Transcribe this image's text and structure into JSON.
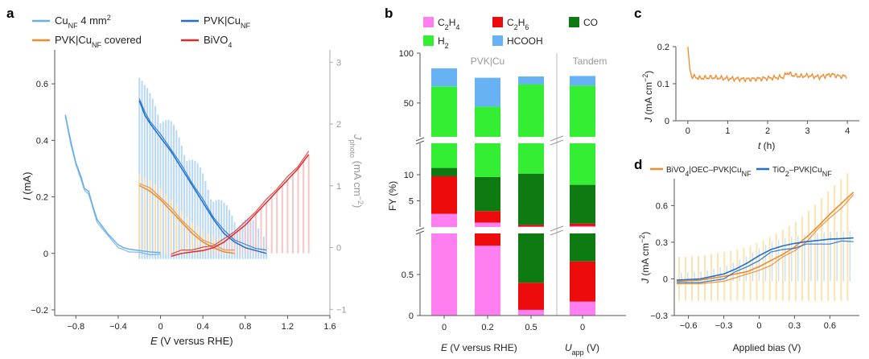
{
  "panels": {
    "a": {
      "label": "a",
      "xlabel_var": "E",
      "xlabel_rest": " (V versus RHE)",
      "ylabel_var": "I",
      "ylabel_rest": " (mA)",
      "y2label_var": "J",
      "y2label_sub": "photo",
      "y2label_rest": " (mA cm",
      "y2label_sup": "−2",
      "y2label_end": ")",
      "xticks": [
        "-0.8",
        "-0.4",
        "0",
        "0.4",
        "0.8",
        "1.2",
        "1.6"
      ],
      "yticks": [
        "-0.2",
        "0",
        "0.2",
        "0.4",
        "0.6"
      ],
      "y2ticks": [
        "-1",
        "0",
        "1",
        "2",
        "3"
      ],
      "legend": [
        {
          "main": "Cu",
          "sub": "NF",
          "rest": " 4 mm",
          "sup": "2",
          "tail": "",
          "color": "#6aaee8"
        },
        {
          "main": "PVK|Cu",
          "sub": "NF",
          "rest": "",
          "sup": "",
          "tail": "",
          "color": "#1f6fce"
        },
        {
          "main": "PVK|Cu",
          "sub": "NF",
          "rest": " covered",
          "sup": "",
          "tail": "",
          "color": "#f08a2a"
        },
        {
          "main": "BiVO",
          "sub": "4",
          "rest": "",
          "sup": "",
          "tail": "",
          "color": "#e02a2a"
        }
      ]
    },
    "b": {
      "label": "b",
      "ylabel": "FY (%)",
      "xlabel_var": "E",
      "xlabel_rest": " (V versus RHE)",
      "xlabel2_var": "U",
      "xlabel2_sub": "app",
      "xlabel2_rest": " (V)",
      "group1": "PVK|Cu",
      "group2": "Tandem",
      "xticks": [
        "0",
        "0.2",
        "0.5",
        "0"
      ],
      "yticks_top": [
        "50",
        "100"
      ],
      "yticks_mid": [
        "5",
        "10"
      ],
      "yticks_bot": [
        "0",
        "0.5"
      ],
      "legend": [
        {
          "main": "C",
          "sub": "2",
          "mid": "H",
          "sub2": "4",
          "color": "#ff7ef0"
        },
        {
          "main": "C",
          "sub": "2",
          "mid": "H",
          "sub2": "6",
          "color": "#ee0b0b"
        },
        {
          "main": "CO",
          "sub": "",
          "mid": "",
          "sub2": "",
          "color": "#0d7a12"
        },
        {
          "main": "H",
          "sub": "2",
          "mid": "",
          "sub2": "",
          "color": "#33ee33"
        },
        {
          "main": "HCOOH",
          "sub": "",
          "mid": "",
          "sub2": "",
          "color": "#66b2f5"
        }
      ]
    },
    "c": {
      "label": "c",
      "ylabel_var": "J",
      "ylabel_rest": " (mA cm",
      "ylabel_sup": "−2",
      "ylabel_end": ")",
      "xlabel_var": "t",
      "xlabel_rest": " (h)",
      "xticks": [
        "0",
        "1",
        "2",
        "3",
        "4"
      ],
      "yticks": [
        "0",
        "0.1",
        "0.2"
      ]
    },
    "d": {
      "label": "d",
      "ylabel_var": "J",
      "ylabel_rest": " (mA cm",
      "ylabel_sup": "−2",
      "ylabel_end": ")",
      "xlabel": "Applied bias (V)",
      "xticks": [
        "-0.6",
        "-0.3",
        "0",
        "0.3",
        "0.6"
      ],
      "yticks": [
        "-0.3",
        "0",
        "0.3",
        "0.6"
      ],
      "legend": [
        {
          "main": "BiVO",
          "sub": "4",
          "rest": "|OEC–PVK|Cu",
          "sub2": "NF",
          "color": "#f08a2a"
        },
        {
          "main": "TiO",
          "sub": "2",
          "rest": "–PVK|Cu",
          "sub2": "NF",
          "color": "#1f6fce"
        }
      ]
    }
  },
  "chart_data": [
    {
      "panel": "a",
      "type": "line",
      "xlim": [
        -1.0,
        1.6
      ],
      "ylim": [
        -0.22,
        0.72
      ],
      "y2lim": [
        -1.1,
        3.2
      ],
      "series": [
        {
          "name": "Cu_NF 4 mm2",
          "color": "#6aaee8",
          "x": [
            -0.9,
            -0.85,
            -0.8,
            -0.75,
            -0.72,
            -0.68,
            -0.65,
            -0.6,
            -0.5,
            -0.4,
            -0.35,
            -0.3,
            -0.2,
            -0.1,
            0
          ],
          "y": [
            0.49,
            0.4,
            0.32,
            0.27,
            0.23,
            0.22,
            0.18,
            0.12,
            0.07,
            0.03,
            0.02,
            0.015,
            0.01,
            0.005,
            0.003
          ]
        },
        {
          "name": "PVK|Cu_NF",
          "color": "#1f6fce",
          "x": [
            -0.2,
            -0.15,
            -0.1,
            0,
            0.1,
            0.2,
            0.3,
            0.4,
            0.5,
            0.6,
            0.7,
            0.8,
            0.9,
            1.0
          ],
          "y": [
            0.54,
            0.49,
            0.46,
            0.41,
            0.36,
            0.3,
            0.24,
            0.18,
            0.12,
            0.07,
            0.04,
            0.02,
            0.01,
            0.0
          ]
        },
        {
          "name": "PVK|Cu_NF covered",
          "color": "#f08a2a",
          "x": [
            -0.2,
            -0.1,
            0,
            0.1,
            0.2,
            0.3,
            0.4,
            0.5,
            0.6,
            0.7
          ],
          "y": [
            0.24,
            0.22,
            0.19,
            0.15,
            0.11,
            0.07,
            0.04,
            0.02,
            0.005,
            0.0
          ]
        },
        {
          "name": "BiVO4",
          "color": "#e02a2a",
          "x": [
            0.1,
            0.2,
            0.3,
            0.4,
            0.5,
            0.6,
            0.7,
            0.8,
            0.9,
            1.0,
            1.1,
            1.2,
            1.3,
            1.4
          ],
          "y": [
            -0.01,
            0.0,
            0.005,
            0.01,
            0.02,
            0.04,
            0.07,
            0.1,
            0.14,
            0.18,
            0.22,
            0.26,
            0.3,
            0.35
          ]
        }
      ]
    },
    {
      "panel": "b",
      "type": "bar",
      "categories": [
        "0",
        "0.2",
        "0.5",
        "0"
      ],
      "series": [
        {
          "name": "C2H4",
          "color": "#ff7ef0",
          "values": [
            2.5,
            0.85,
            0.07,
            0.17
          ]
        },
        {
          "name": "C2H6",
          "color": "#ee0b0b",
          "values": [
            7.2,
            2.2,
            0.33,
            0.49
          ]
        },
        {
          "name": "CO",
          "color": "#0d7a12",
          "values": [
            1.6,
            6.5,
            9.8,
            7.4
          ]
        },
        {
          "name": "H2",
          "color": "#33ee33",
          "values": [
            55.3,
            36.8,
            58.6,
            59.3
          ]
        },
        {
          "name": "HCOOH",
          "color": "#66b2f5",
          "values": [
            18.1,
            28.9,
            7.8,
            9.7
          ]
        }
      ]
    },
    {
      "panel": "c",
      "type": "line",
      "xlim": [
        -0.3,
        4.3
      ],
      "ylim": [
        0,
        0.2
      ],
      "series": [
        {
          "name": "tandem",
          "color": "#f08a2a",
          "x": [
            0,
            0.05,
            0.1,
            0.3,
            0.6,
            1.0,
            1.5,
            2.0,
            2.4,
            2.5,
            2.6,
            2.8,
            3.0,
            3.3,
            3.6,
            3.8,
            4.0
          ],
          "y": [
            0.2,
            0.14,
            0.12,
            0.115,
            0.117,
            0.114,
            0.112,
            0.115,
            0.118,
            0.13,
            0.124,
            0.12,
            0.122,
            0.118,
            0.125,
            0.12,
            0.12
          ]
        }
      ]
    },
    {
      "panel": "d",
      "type": "line",
      "xlim": [
        -0.72,
        0.85
      ],
      "ylim": [
        -0.3,
        0.82
      ],
      "series": [
        {
          "name": "BiVO4|OEC–PVK|Cu_NF",
          "color": "#f08a2a",
          "x": [
            -0.7,
            -0.5,
            -0.3,
            -0.1,
            0,
            0.1,
            0.2,
            0.3,
            0.4,
            0.5,
            0.6,
            0.7,
            0.8
          ],
          "y": [
            -0.02,
            -0.01,
            0.02,
            0.06,
            0.1,
            0.15,
            0.2,
            0.26,
            0.34,
            0.43,
            0.53,
            0.62,
            0.71
          ]
        },
        {
          "name": "TiO2–PVK|Cu_NF",
          "color": "#1f6fce",
          "x": [
            -0.7,
            -0.5,
            -0.3,
            -0.2,
            -0.1,
            0,
            0.1,
            0.2,
            0.3,
            0.4,
            0.5,
            0.6,
            0.7,
            0.8
          ],
          "y": [
            -0.01,
            0.0,
            0.04,
            0.08,
            0.13,
            0.19,
            0.24,
            0.27,
            0.29,
            0.305,
            0.315,
            0.325,
            0.33,
            0.335
          ]
        }
      ]
    }
  ]
}
